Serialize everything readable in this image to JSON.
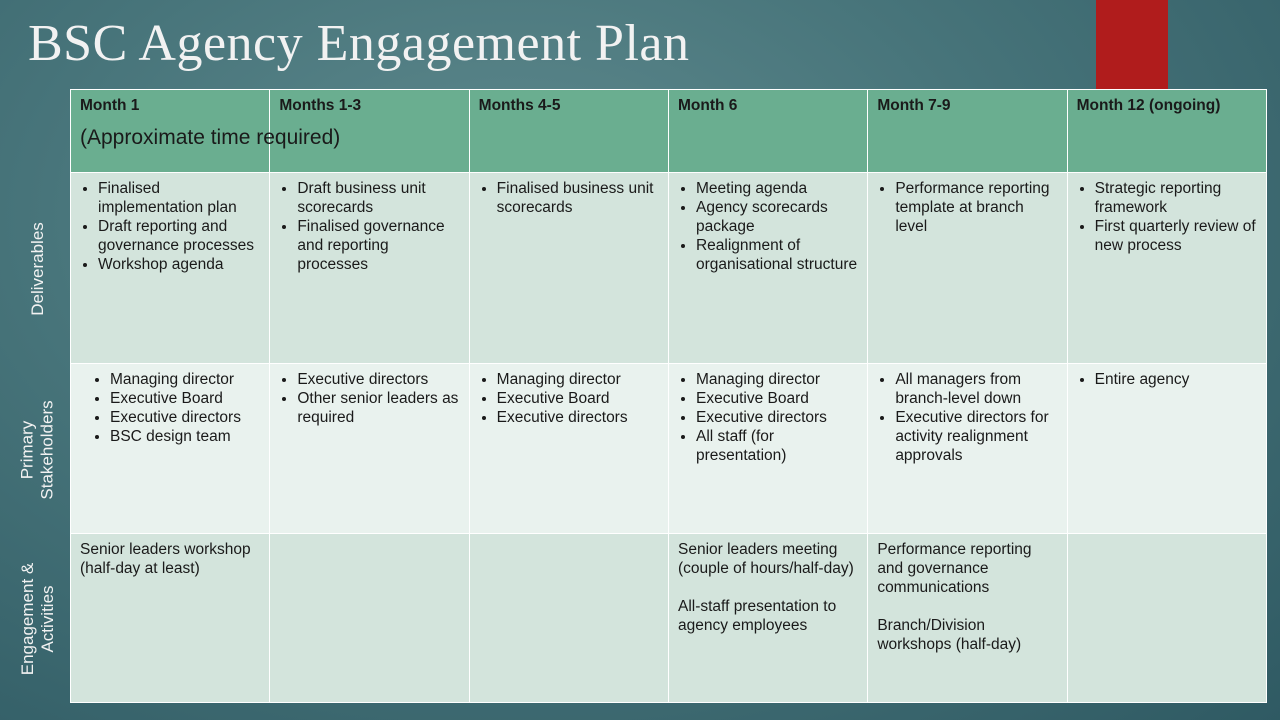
{
  "title": "BSC Agency Engagement Plan",
  "header": {
    "columns": [
      "Month 1",
      "Months 1-3",
      "Months 4-5",
      "Month 6",
      "Month 7-9",
      "Month 12 (ongoing)"
    ],
    "subtitle": "(Approximate time required)"
  },
  "row_labels": {
    "deliverables": "Deliverables",
    "stakeholders": "Primary\nStakeholders",
    "engagement": "Engagement &\nActivities"
  },
  "deliverables": [
    [
      "Finalised implementation plan",
      "Draft reporting and governance processes",
      "Workshop agenda"
    ],
    [
      "Draft business unit scorecards",
      "Finalised governance and reporting processes"
    ],
    [
      "Finalised business unit scorecards"
    ],
    [
      "Meeting agenda",
      "Agency scorecards package",
      "Realignment of organisational structure"
    ],
    [
      "Performance reporting template at branch level"
    ],
    [
      "Strategic reporting framework",
      "First quarterly review of new process"
    ]
  ],
  "stakeholders": [
    [
      "Managing director",
      "Executive Board",
      "Executive directors",
      "BSC design team"
    ],
    [
      "Executive directors",
      "Other senior leaders as required"
    ],
    [
      "Managing director",
      "Executive Board",
      "Executive directors"
    ],
    [
      "Managing director",
      "Executive Board",
      "Executive directors",
      "All staff (for presentation)"
    ],
    [
      "All managers from branch-level down",
      "Executive directors for activity realignment approvals"
    ],
    [
      "Entire agency"
    ]
  ],
  "engagement": {
    "month1": "Senior leaders workshop (half-day at least)",
    "month6_a": "Senior leaders meeting (couple of hours/half-day)",
    "month6_b": "All-staff presentation to agency employees",
    "month79_a": "Performance reporting and governance communications",
    "month79_b": "Branch/Division workshops (half-day)"
  },
  "colors": {
    "header_bg": "#6aae90",
    "row_light": "#e9f2ee",
    "row_dark": "#d3e4dc",
    "accent": "#b01c1c"
  }
}
